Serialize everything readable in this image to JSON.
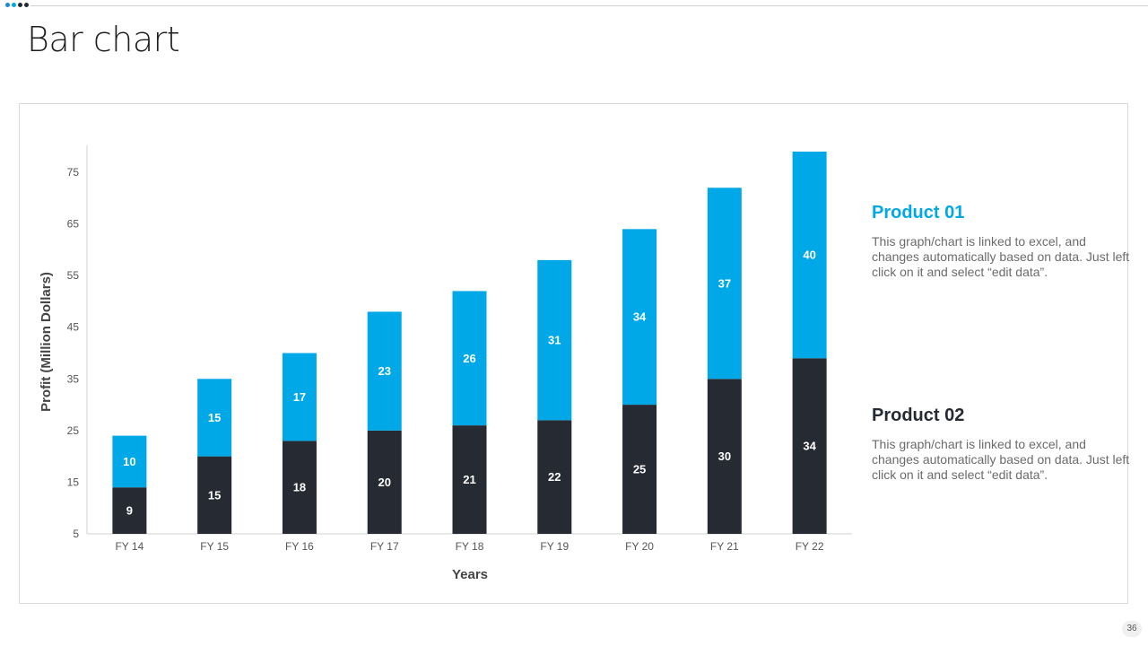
{
  "slide": {
    "title": "Bar chart",
    "page_number": "36"
  },
  "colors": {
    "product_01": "#00a8e8",
    "product_02": "#262a33",
    "axis_text": "#555555",
    "dots": [
      "#1a8ad1",
      "#00a8e8",
      "#262a33",
      "#262a33"
    ]
  },
  "legend": [
    {
      "title": "Product 01",
      "description": "This graph/chart is linked to excel, and changes automatically based on data. Just left click on it and select “edit data”.",
      "color": "#00a8e8"
    },
    {
      "title": "Product 02",
      "description": "This graph/chart is linked to excel, and changes automatically based on data. Just left click on it and select “edit data”.",
      "color": "#262a33"
    }
  ],
  "chart_data": {
    "type": "bar",
    "stacked": true,
    "title": "",
    "xlabel": "Years",
    "ylabel": "Profit  (Million Dollars)",
    "categories": [
      "FY 14",
      "FY 15",
      "FY 16",
      "FY 17",
      "FY 18",
      "FY 19",
      "FY 20",
      "FY 21",
      "FY 22"
    ],
    "ylim": [
      5,
      80
    ],
    "yticks": [
      5,
      15,
      25,
      35,
      45,
      55,
      65,
      75
    ],
    "baseline": 5,
    "series": [
      {
        "name": "Product 02",
        "color": "#262a33",
        "values": [
          9,
          15,
          18,
          20,
          21,
          22,
          25,
          30,
          34
        ]
      },
      {
        "name": "Product 01",
        "color": "#00a8e8",
        "values": [
          10,
          15,
          17,
          23,
          26,
          31,
          34,
          37,
          40
        ]
      }
    ],
    "data_labels": true,
    "grid": false
  }
}
